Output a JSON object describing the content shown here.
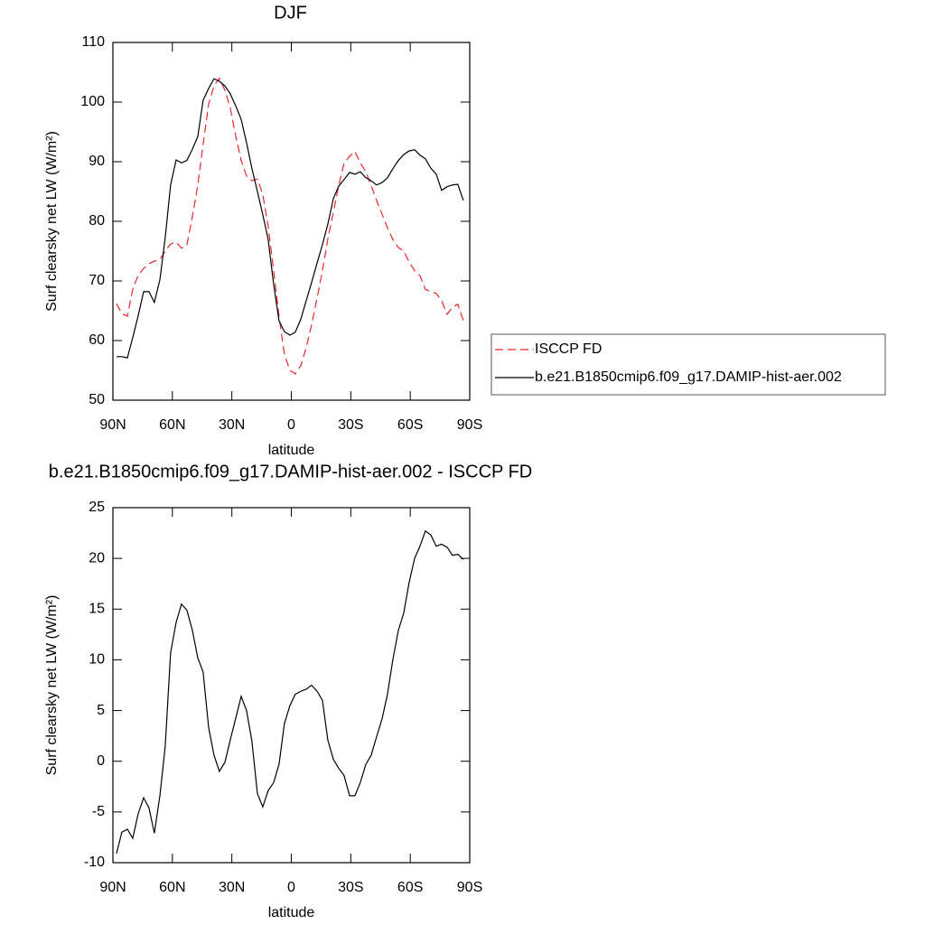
{
  "chart_data": [
    {
      "type": "line",
      "title": "DJF",
      "xlabel": "latitude",
      "ylabel": "Surf clearsky net LW (W/m²)",
      "x": [
        88.2,
        85.5,
        82.7,
        80.0,
        77.3,
        74.5,
        71.8,
        69.1,
        66.3,
        63.6,
        60.9,
        58.1,
        55.4,
        52.7,
        49.9,
        47.2,
        44.5,
        41.7,
        39.0,
        36.3,
        33.5,
        30.8,
        28.1,
        25.3,
        22.6,
        19.9,
        17.1,
        14.4,
        11.7,
        8.9,
        6.2,
        3.5,
        0.7,
        -2.0,
        -4.8,
        -7.5,
        -10.2,
        -13.0,
        -15.7,
        -18.4,
        -21.2,
        -23.9,
        -26.6,
        -29.4,
        -32.1,
        -34.8,
        -37.6,
        -40.3,
        -43.0,
        -45.8,
        -48.5,
        -51.2,
        -54.0,
        -56.7,
        -59.4,
        -62.2,
        -64.9,
        -67.6,
        -70.4,
        -73.1,
        -75.8,
        -78.6,
        -81.3,
        -84.0,
        -86.8
      ],
      "series": [
        {
          "name": "ISCCP FD",
          "color": "#e8262b",
          "dashed": true,
          "values": [
            66.2,
            64.5,
            64.1,
            68.6,
            70.9,
            72.1,
            72.9,
            73.3,
            73.6,
            75.0,
            76.2,
            76.5,
            75.5,
            76.0,
            80.8,
            86.0,
            92.9,
            99.7,
            102.7,
            104.0,
            102.0,
            99.0,
            94.4,
            90.2,
            87.6,
            86.8,
            87.1,
            84.5,
            79.2,
            71.7,
            64.1,
            57.7,
            55.0,
            54.4,
            55.8,
            58.8,
            62.6,
            67.1,
            71.7,
            77.0,
            81.5,
            86.0,
            89.8,
            90.9,
            91.7,
            89.8,
            88.3,
            86.0,
            83.5,
            81.2,
            78.9,
            77.0,
            75.6,
            75.0,
            73.2,
            71.7,
            70.9,
            68.6,
            68.2,
            67.9,
            66.7,
            64.4,
            65.6,
            66.1,
            63.3
          ]
        },
        {
          "name": "b.e21.B1850cmip6.f09_g17.DAMIP-hist-aer.002",
          "color": "#000000",
          "dashed": false,
          "values": [
            57.3,
            57.3,
            57.1,
            60.5,
            64.1,
            68.2,
            68.2,
            66.4,
            70.2,
            77.3,
            86.1,
            90.3,
            89.8,
            90.2,
            92.1,
            94.2,
            100.3,
            102.3,
            103.9,
            103.5,
            102.7,
            101.4,
            99.4,
            97.1,
            93.2,
            88.9,
            85.0,
            81.1,
            77.0,
            69.4,
            63.3,
            61.5,
            60.9,
            61.4,
            63.6,
            66.7,
            69.7,
            73.0,
            76.1,
            79.5,
            83.8,
            85.9,
            87.0,
            88.2,
            87.9,
            88.3,
            87.3,
            86.8,
            86.1,
            86.5,
            87.3,
            88.8,
            90.2,
            91.2,
            91.8,
            92.0,
            91.1,
            90.5,
            88.9,
            87.9,
            85.2,
            85.8,
            86.1,
            86.2,
            83.5
          ]
        }
      ],
      "xlim": [
        90,
        -90
      ],
      "xticks": [
        {
          "value": 90,
          "label": "90N"
        },
        {
          "value": 60,
          "label": "60N"
        },
        {
          "value": 30,
          "label": "30N"
        },
        0,
        {
          "value": -30,
          "label": "30S"
        },
        {
          "value": -60,
          "label": "60S"
        },
        {
          "value": -90,
          "label": "90S"
        }
      ],
      "ylim": [
        50,
        110
      ],
      "yticks": [
        50,
        60,
        70,
        80,
        90,
        100,
        110
      ],
      "legend": "right"
    },
    {
      "type": "line",
      "title": "b.e21.B1850cmip6.f09_g17.DAMIP-hist-aer.002 - ISCCP FD",
      "xlabel": "latitude",
      "ylabel": "Surf clearsky net LW (W/m²)",
      "x": [
        88.2,
        85.5,
        82.7,
        80.0,
        77.3,
        74.5,
        71.8,
        69.1,
        66.3,
        63.6,
        60.9,
        58.1,
        55.4,
        52.7,
        49.9,
        47.2,
        44.5,
        41.7,
        39.0,
        36.3,
        33.5,
        30.8,
        28.1,
        25.3,
        22.6,
        19.9,
        17.1,
        14.4,
        11.7,
        8.9,
        6.2,
        3.5,
        0.7,
        -2.0,
        -4.8,
        -7.5,
        -10.2,
        -13.0,
        -15.7,
        -18.4,
        -21.2,
        -23.9,
        -26.6,
        -29.4,
        -32.1,
        -34.8,
        -37.6,
        -40.3,
        -43.0,
        -45.8,
        -48.5,
        -51.2,
        -54.0,
        -56.7,
        -59.4,
        -62.2,
        -64.9,
        -67.6,
        -70.4,
        -73.1,
        -75.8,
        -78.6,
        -81.3,
        -84.0,
        -86.8
      ],
      "series": [
        {
          "color": "#000000",
          "dashed": false,
          "values": [
            -9.1,
            -7.0,
            -6.7,
            -7.6,
            -5.2,
            -3.6,
            -4.6,
            -7.1,
            -3.4,
            1.5,
            10.7,
            13.7,
            15.5,
            14.9,
            12.9,
            10.2,
            8.8,
            3.3,
            0.6,
            -1.0,
            -0.1,
            2.1,
            4.2,
            6.4,
            5.0,
            2.0,
            -3.2,
            -4.5,
            -2.9,
            -2.1,
            -0.3,
            3.7,
            5.5,
            6.6,
            6.9,
            7.1,
            7.5,
            6.9,
            6.0,
            2.1,
            0.2,
            -0.7,
            -1.4,
            -3.4,
            -3.4,
            -2.1,
            -0.3,
            0.6,
            2.4,
            4.2,
            6.6,
            10.0,
            12.9,
            14.6,
            17.6,
            20.0,
            21.2,
            22.7,
            22.3,
            21.2,
            21.4,
            21.1,
            20.3,
            20.4,
            19.9
          ]
        }
      ],
      "xlim": [
        90,
        -90
      ],
      "xticks": [
        {
          "value": 90,
          "label": "90N"
        },
        {
          "value": 60,
          "label": "60N"
        },
        {
          "value": 30,
          "label": "30N"
        },
        0,
        {
          "value": -30,
          "label": "30S"
        },
        {
          "value": -60,
          "label": "60S"
        },
        {
          "value": -90,
          "label": "90S"
        }
      ],
      "ylim": [
        -10,
        25
      ],
      "yticks": [
        -10,
        -5,
        0,
        5,
        10,
        15,
        20,
        25
      ]
    }
  ]
}
